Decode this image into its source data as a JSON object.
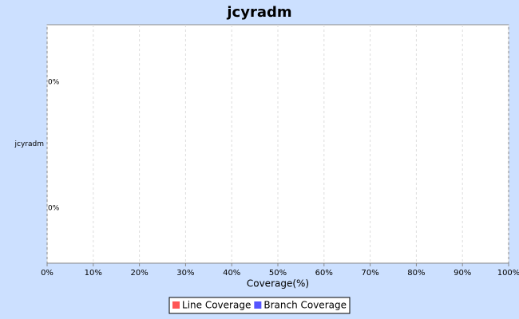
{
  "chart_data": {
    "type": "bar",
    "orientation": "horizontal",
    "title": "jcyradm",
    "x_label": "Coverage(%)",
    "categories": [
      "jcyradm"
    ],
    "series": [
      {
        "name": "Line Coverage",
        "color": "#ff5555",
        "values": [
          0
        ],
        "value_labels": [
          "0%"
        ]
      },
      {
        "name": "Branch Coverage",
        "color": "#5555ff",
        "values": [
          0
        ],
        "value_labels": [
          "0%"
        ]
      }
    ],
    "xlim": [
      0,
      100
    ],
    "xticks": [
      {
        "value": 0,
        "label": "0%"
      },
      {
        "value": 10,
        "label": "10%"
      },
      {
        "value": 20,
        "label": "20%"
      },
      {
        "value": 30,
        "label": "30%"
      },
      {
        "value": 40,
        "label": "40%"
      },
      {
        "value": 50,
        "label": "50%"
      },
      {
        "value": 60,
        "label": "60%"
      },
      {
        "value": 70,
        "label": "70%"
      },
      {
        "value": 80,
        "label": "80%"
      },
      {
        "value": 90,
        "label": "90%"
      },
      {
        "value": 100,
        "label": "100%"
      }
    ],
    "grid": true,
    "legend": "bottom"
  }
}
